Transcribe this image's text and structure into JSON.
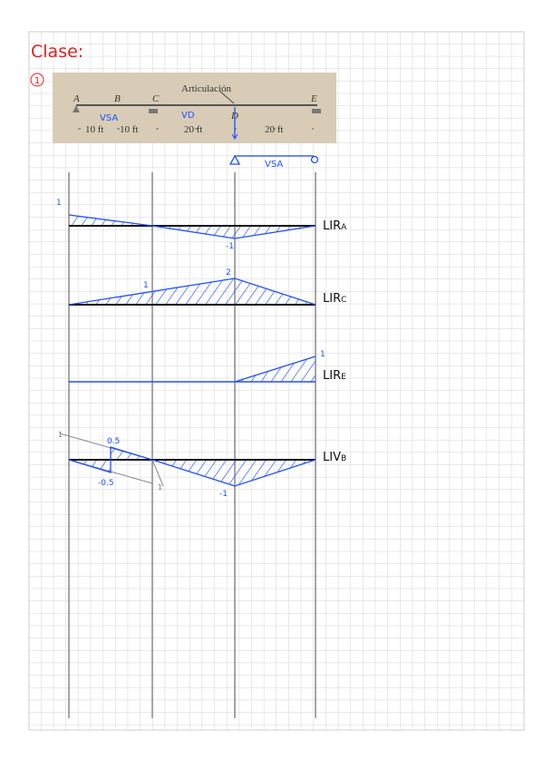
{
  "header": {
    "title": "Clase:",
    "problem_number": "1"
  },
  "figure": {
    "hinge_label": "Articulación",
    "points": [
      "A",
      "B",
      "C",
      "D",
      "E"
    ],
    "dimensions": [
      "10 ft",
      "10 ft",
      "20 ft",
      "20 ft"
    ],
    "notes": [
      "VSA",
      "VD"
    ]
  },
  "sub_beam_label": "VSA",
  "diagrams": [
    {
      "name": "LIRA",
      "main": "LIR",
      "sub": "A",
      "labels": [
        "1",
        "-1"
      ]
    },
    {
      "name": "LIRC",
      "main": "LIR",
      "sub": "C",
      "labels": [
        "1",
        "2"
      ]
    },
    {
      "name": "LIRE",
      "main": "LIR",
      "sub": "E",
      "labels": [
        "1"
      ]
    },
    {
      "name": "LIVB",
      "main": "LIV",
      "sub": "B",
      "labels": [
        "1",
        "0.5",
        "-0.5",
        "1",
        "-1"
      ]
    }
  ],
  "colors": {
    "ink_blue": "#1f4fff",
    "ink_red": "#e02020",
    "grid": "#d4d4d4",
    "photo": "#d8ccb6"
  }
}
